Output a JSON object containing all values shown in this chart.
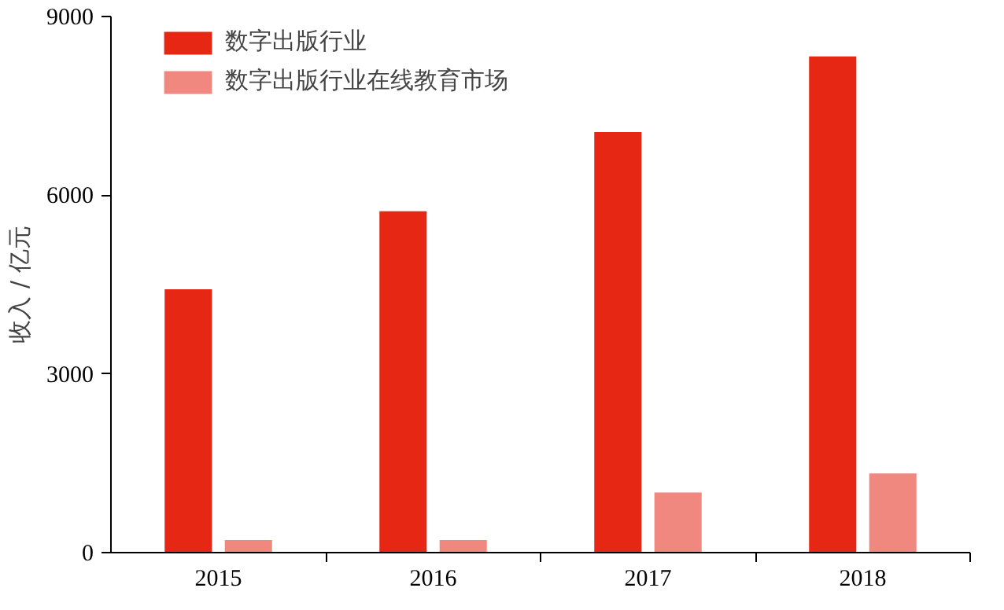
{
  "chart_data": {
    "type": "bar",
    "ylabel": "收入 / 亿元",
    "categories": [
      "2015",
      "2016",
      "2017",
      "2018"
    ],
    "series": [
      {
        "name": "数字出版行业",
        "color": "#e52713",
        "values": [
          4420,
          5730,
          7060,
          8330
        ]
      },
      {
        "name": "数字出版行业在线教育市场",
        "color": "#f08880",
        "values": [
          210,
          210,
          1010,
          1330
        ]
      }
    ],
    "ylim": [
      0,
      9000
    ],
    "yticks": [
      0,
      3000,
      6000,
      9000
    ],
    "grid": false,
    "legend": "top left"
  }
}
